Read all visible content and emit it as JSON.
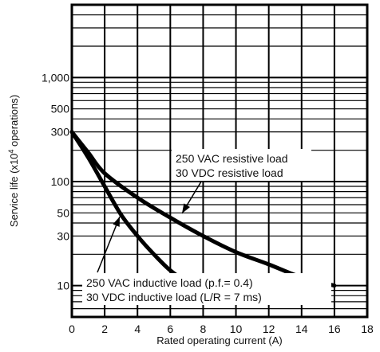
{
  "chart_data": {
    "type": "line",
    "title": "",
    "xlabel": "Rated operating current (A)",
    "ylabel_main": "Service life (x10",
    "ylabel_sup": "4",
    "ylabel_tail": " operations)",
    "xlim": [
      0,
      18
    ],
    "ylim": [
      5,
      5000
    ],
    "y_scale": "log",
    "grid": true,
    "x_ticks": [
      "0",
      "2",
      "4",
      "6",
      "8",
      "10",
      "12",
      "14",
      "16",
      "18"
    ],
    "y_ticks": [
      {
        "value": 10,
        "label": "10"
      },
      {
        "value": 30,
        "label": "30"
      },
      {
        "value": 50,
        "label": "50"
      },
      {
        "value": 100,
        "label": "100"
      },
      {
        "value": 300,
        "label": "300"
      },
      {
        "value": 500,
        "label": "500"
      },
      {
        "value": 1000,
        "label": "1,000"
      }
    ],
    "series": [
      {
        "name": "",
        "x": [
          0,
          1,
          2,
          4,
          6,
          8,
          10,
          12,
          14,
          16
        ],
        "y": [
          300,
          190,
          120,
          70,
          45,
          30,
          21,
          16,
          12,
          10
        ]
      },
      {
        "name": "",
        "x": [
          0,
          1,
          2,
          3,
          4,
          5,
          6,
          7,
          8
        ],
        "y": [
          300,
          170,
          90,
          48,
          30,
          20,
          14,
          11,
          10
        ]
      }
    ],
    "annotations": {
      "resistive": [
        "250 VAC resistive load",
        "30 VDC resistive load"
      ],
      "inductive": [
        "250 VAC inductive load (p.f.= 0.4)",
        "30 VDC inductive load (L/R = 7 ms)"
      ]
    }
  }
}
